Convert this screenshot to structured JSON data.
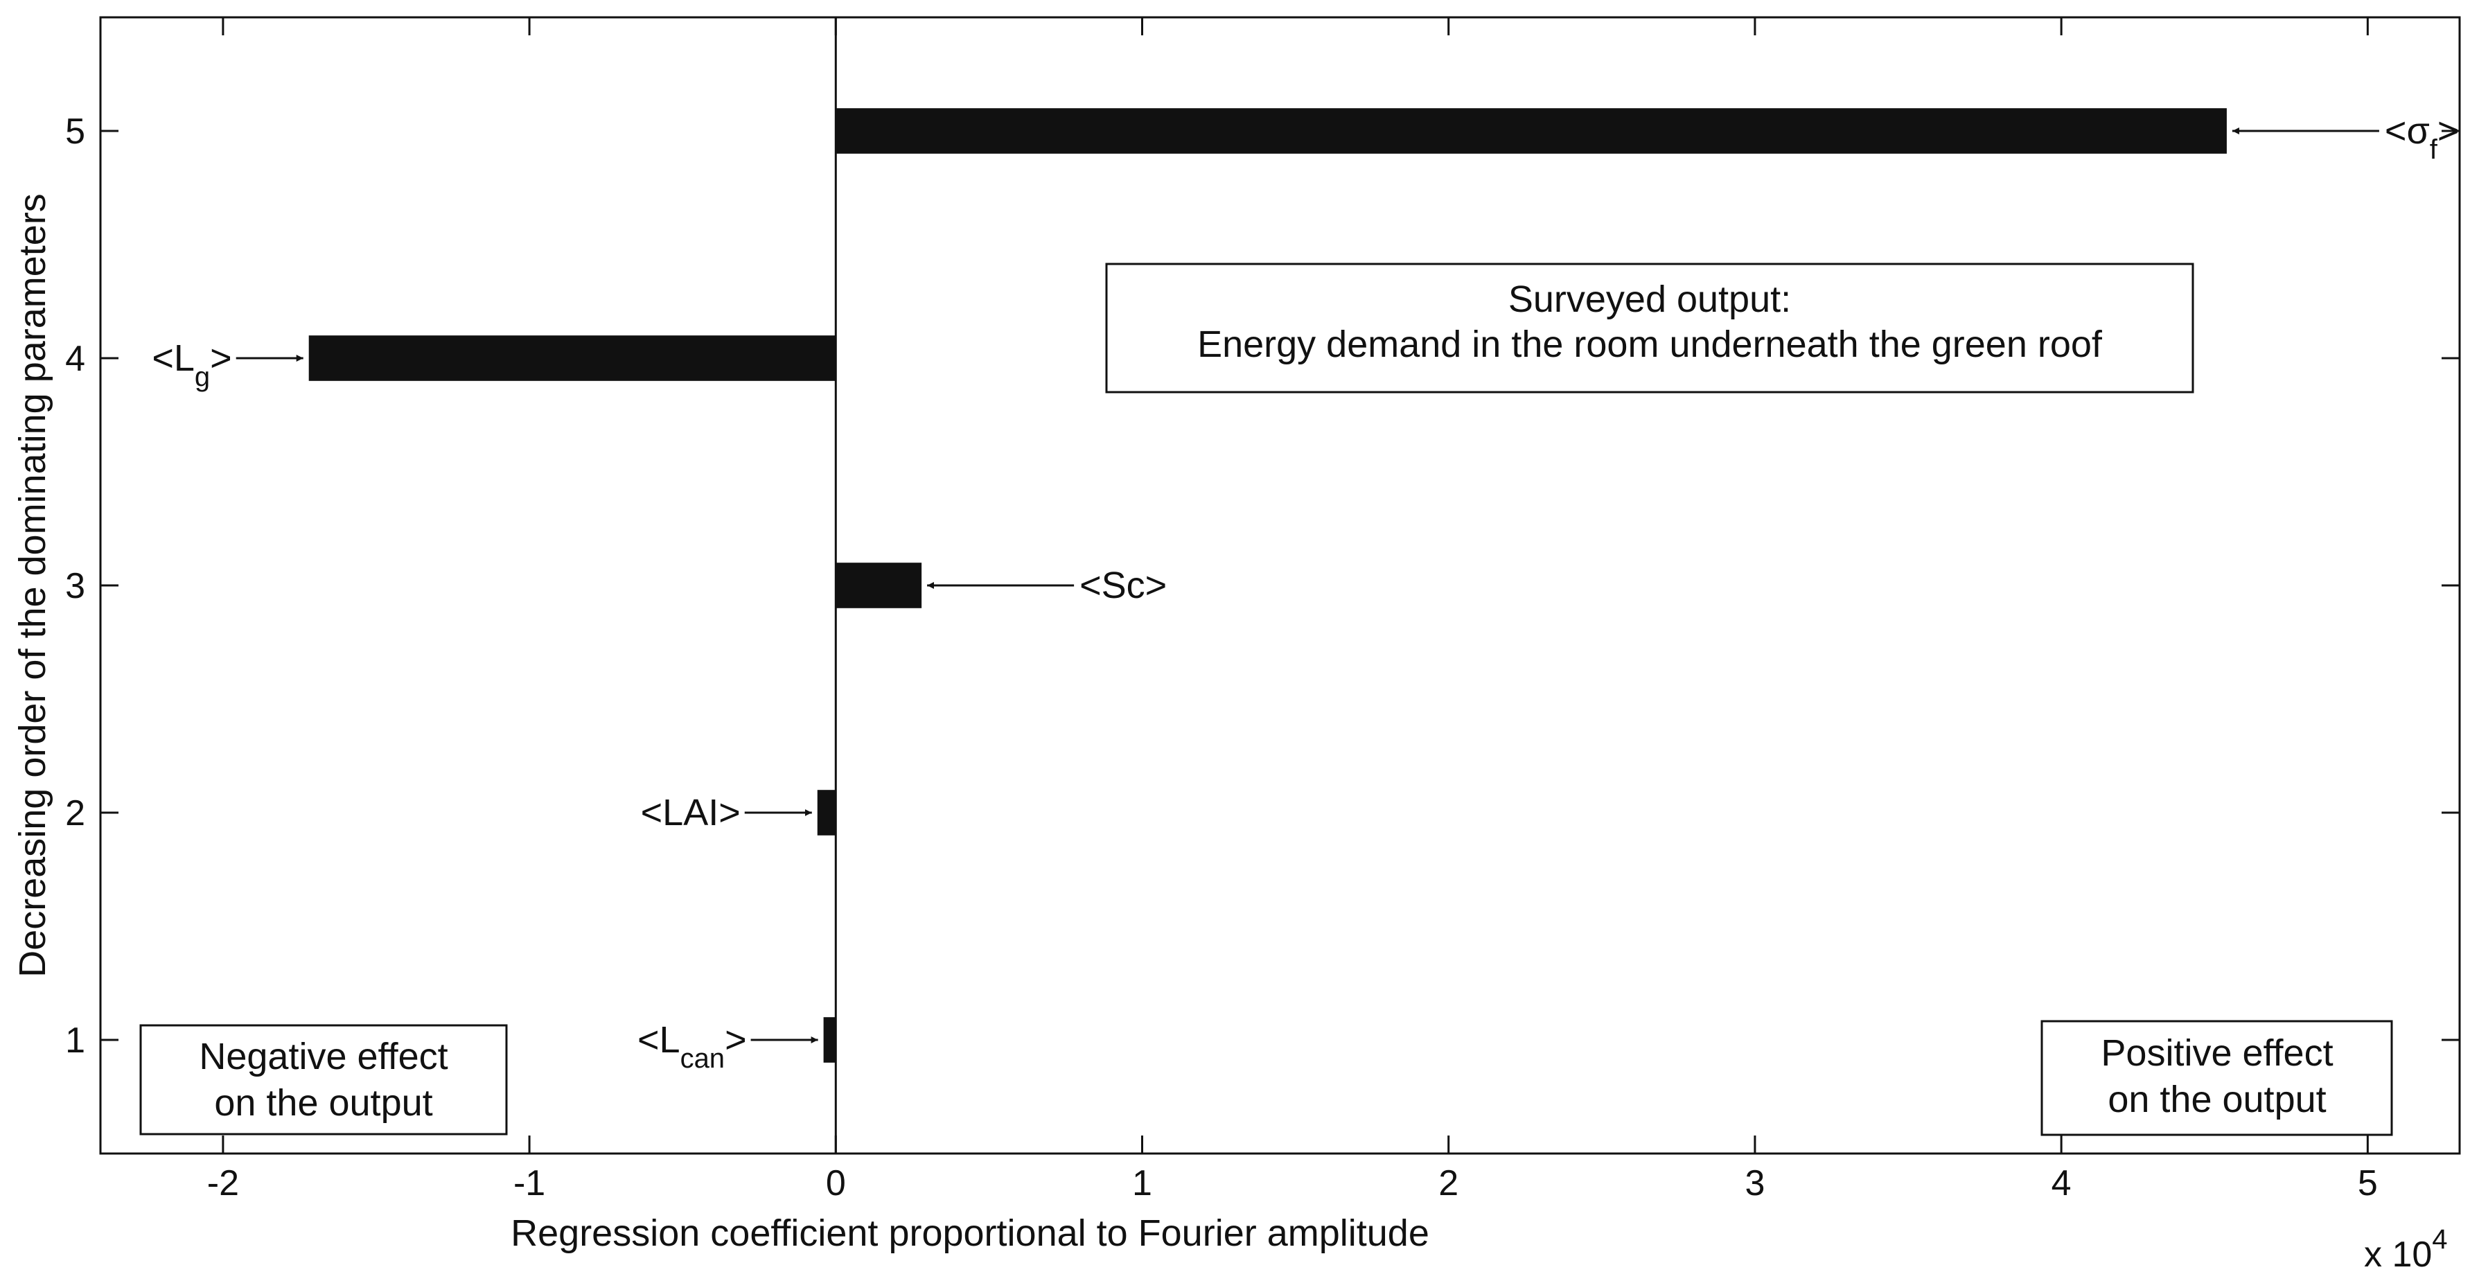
{
  "chart_data": {
    "type": "bar",
    "orientation": "horizontal",
    "xlabel": "Regression coefficient proportional to Fourier amplitude",
    "ylabel": "Decreasing order of the dominating parameters",
    "x_scale_label": "x 10",
    "x_scale_exponent": "4",
    "xlim": [
      -24000,
      53000
    ],
    "ylim": [
      0.5,
      5.5
    ],
    "x_ticks": [
      -20000,
      -10000,
      0,
      10000,
      20000,
      30000,
      40000,
      50000
    ],
    "x_tick_labels": [
      "-2",
      "-1",
      "0",
      "1",
      "2",
      "3",
      "4",
      "5"
    ],
    "y_ticks": [
      1,
      2,
      3,
      4,
      5
    ],
    "y_tick_labels": [
      "1",
      "2",
      "3",
      "4",
      "5"
    ],
    "bars": [
      {
        "y": 1,
        "value": -400,
        "label_main": "<L",
        "label_sub": "can",
        "label_end": ">",
        "label_side": "left"
      },
      {
        "y": 2,
        "value": -600,
        "label_main": "<LAI>",
        "label_sub": "",
        "label_end": "",
        "label_side": "left"
      },
      {
        "y": 3,
        "value": 2800,
        "label_main": "<Sc>",
        "label_sub": "",
        "label_end": "",
        "label_side": "right"
      },
      {
        "y": 4,
        "value": -17200,
        "label_main": "<L",
        "label_sub": "g",
        "label_end": ">",
        "label_side": "left"
      },
      {
        "y": 5,
        "value": 45400,
        "label_main": "<σ",
        "label_sub": "f",
        "label_end": ">",
        "label_side": "right"
      }
    ],
    "annotations": {
      "surveyed_line1": "Surveyed output:",
      "surveyed_line2": "Energy demand in the room underneath the green roof",
      "negative_line1": "Negative effect",
      "negative_line2": "on the output",
      "positive_line1": "Positive effect",
      "positive_line2": "on the output"
    },
    "grid": false,
    "bar_color": "#111111"
  }
}
